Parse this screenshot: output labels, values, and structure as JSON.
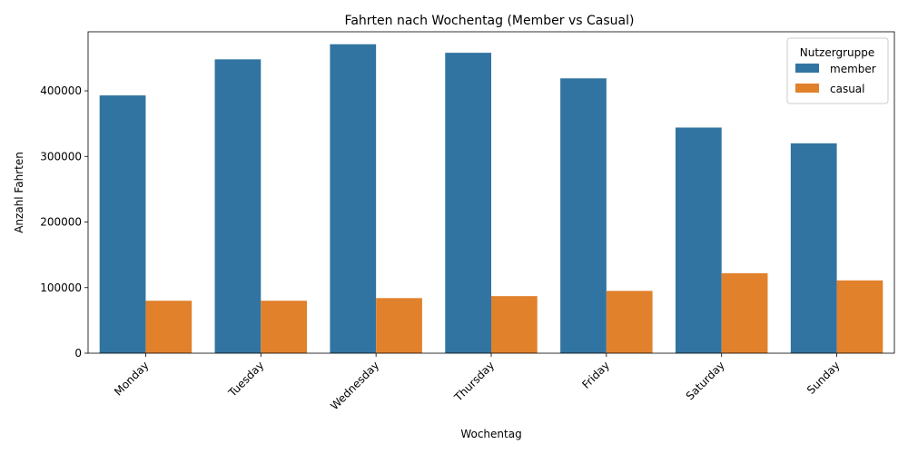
{
  "chart_data": {
    "type": "bar",
    "title": "Fahrten nach Wochentag (Member vs Casual)",
    "xlabel": "Wochentag",
    "ylabel": "Anzahl Fahrten",
    "categories": [
      "Monday",
      "Tuesday",
      "Wednesday",
      "Thursday",
      "Friday",
      "Saturday",
      "Sunday"
    ],
    "series": [
      {
        "name": "member",
        "color": "#3274a1",
        "values": [
          393000,
          448000,
          471000,
          458000,
          419000,
          344000,
          320000
        ]
      },
      {
        "name": "casual",
        "color": "#e1812c",
        "values": [
          80000,
          80000,
          84000,
          87000,
          95000,
          122000,
          111000
        ]
      }
    ],
    "ylim": [
      0,
      490000
    ],
    "yticks": [
      "0",
      "100000",
      "200000",
      "300000",
      "400000"
    ],
    "ytick_values": [
      0,
      100000,
      200000,
      300000,
      400000
    ],
    "grid": false,
    "legend": {
      "title": "Nutzergruppe",
      "placement": "top-right"
    }
  }
}
